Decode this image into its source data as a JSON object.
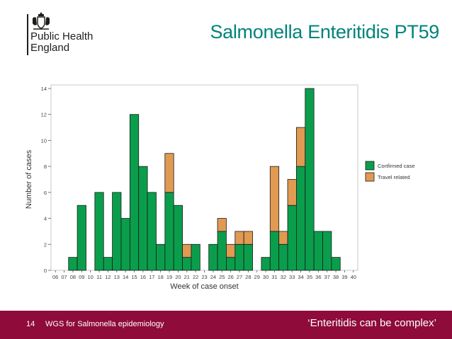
{
  "header": {
    "org_lines": [
      "Public Health",
      "England"
    ],
    "title": "Salmonella Enteritidis PT59"
  },
  "footer": {
    "slide_number": "14",
    "left_text": "WGS for Salmonella epidemiology",
    "right_text": "‘Enteritidis can be complex’"
  },
  "colors": {
    "title": "#00837b",
    "footer_bg": "#8e0b3a",
    "confirmed": "#0a9e4c",
    "travel": "#e09a52"
  },
  "chart_data": {
    "type": "bar",
    "stacked": true,
    "xlabel": "Week of case onset",
    "ylabel": "Number of cases",
    "ylim": [
      0,
      14
    ],
    "yticks": [
      0,
      2,
      4,
      6,
      8,
      10,
      12,
      14
    ],
    "grid": false,
    "legend_position": "right",
    "categories": [
      "06",
      "07",
      "08",
      "09",
      "10",
      "11",
      "12",
      "13",
      "14",
      "15",
      "16",
      "17",
      "18",
      "19",
      "20",
      "21",
      "22",
      "23",
      "24",
      "25",
      "26",
      "27",
      "28",
      "29",
      "30",
      "31",
      "32",
      "33",
      "34",
      "35",
      "36",
      "37",
      "38",
      "39",
      "40"
    ],
    "series": [
      {
        "name": "Confirmed case",
        "color": "#0a9e4c",
        "values": [
          0,
          0,
          1,
          5,
          0,
          6,
          1,
          6,
          4,
          12,
          8,
          6,
          2,
          6,
          5,
          1,
          2,
          0,
          2,
          3,
          1,
          2,
          2,
          0,
          1,
          3,
          2,
          5,
          8,
          14,
          3,
          3,
          1,
          0,
          0
        ]
      },
      {
        "name": "Travel related",
        "color": "#e09a52",
        "values": [
          0,
          0,
          0,
          0,
          0,
          0,
          0,
          0,
          0,
          0,
          0,
          0,
          0,
          3,
          0,
          1,
          0,
          0,
          0,
          1,
          1,
          1,
          1,
          0,
          0,
          5,
          1,
          2,
          3,
          0,
          0,
          0,
          0,
          0,
          0
        ]
      }
    ]
  }
}
